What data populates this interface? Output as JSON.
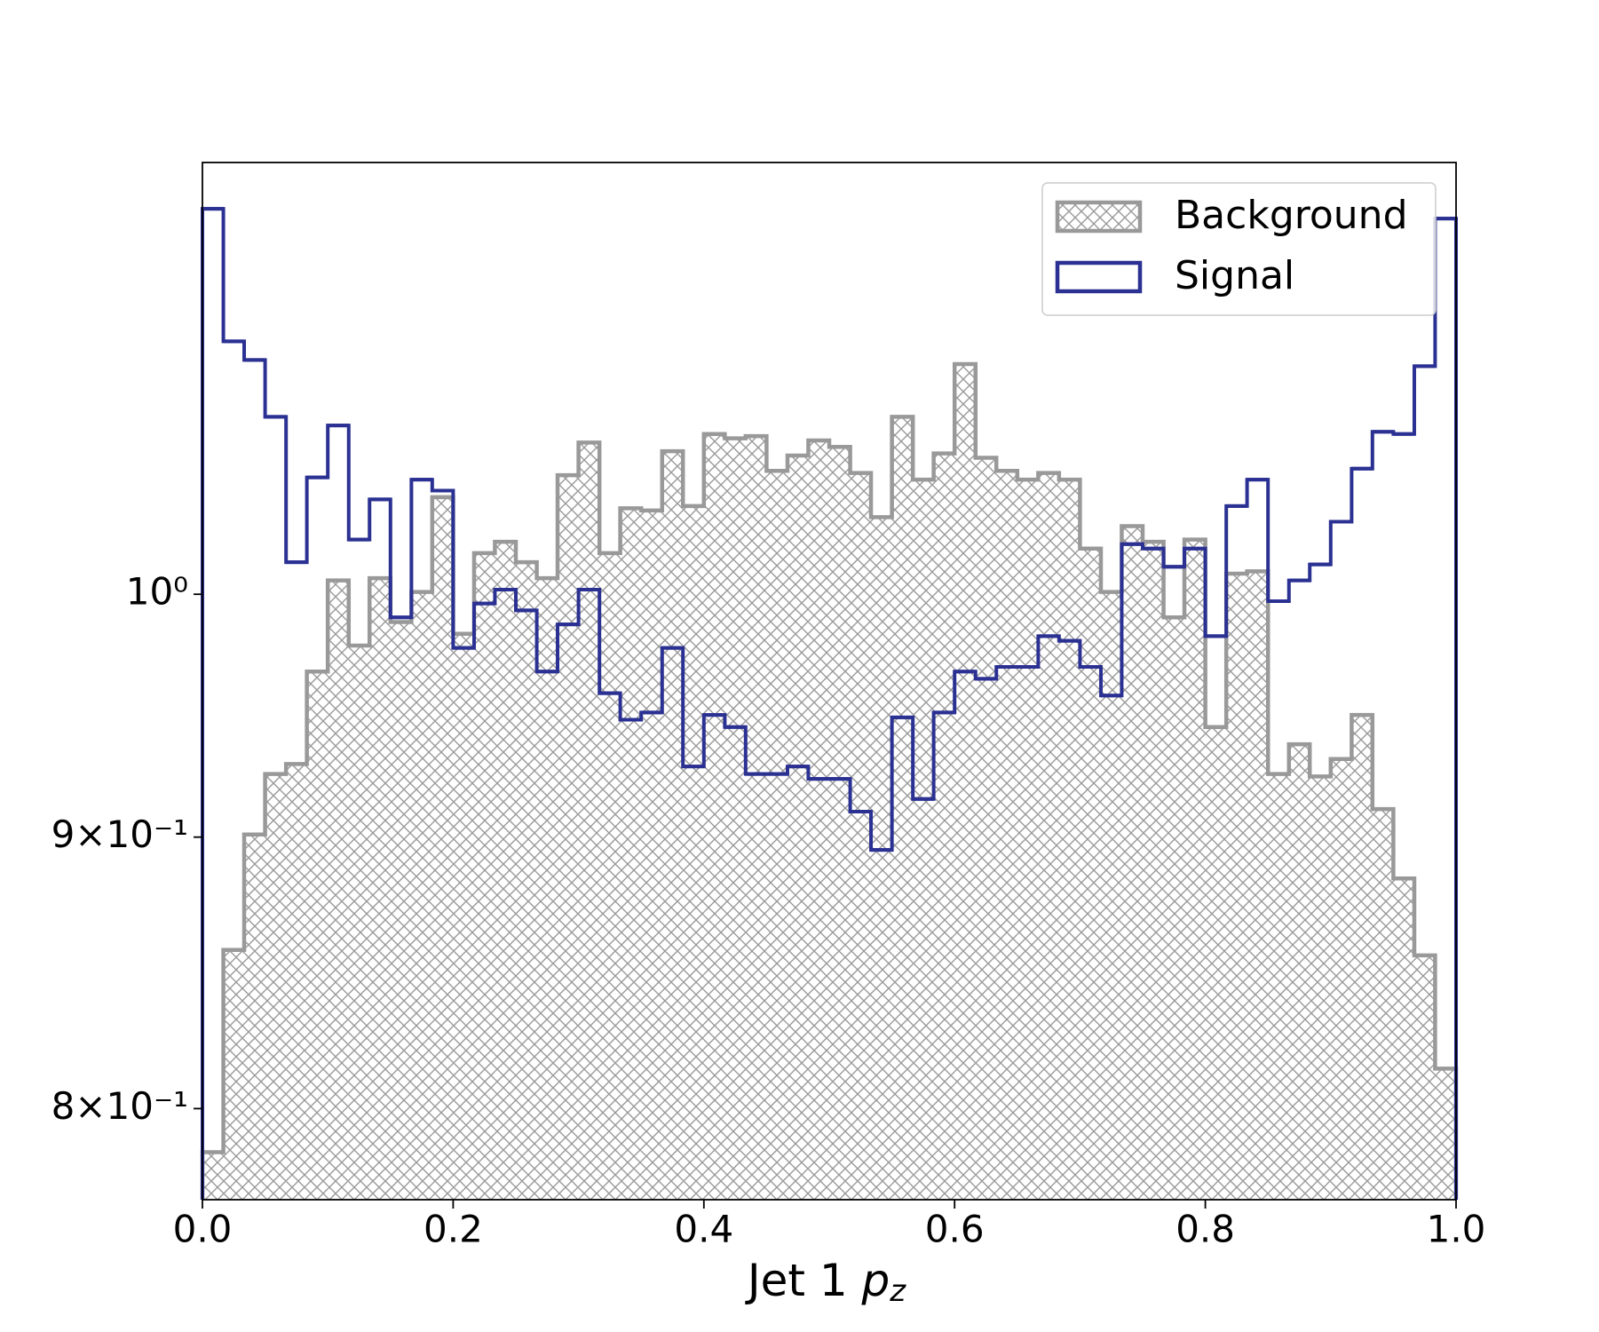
{
  "chart_data": {
    "type": "histogram",
    "xlabel": "Jet 1 pz",
    "bins": [
      0,
      0.0167,
      0.0333,
      0.05,
      0.0667,
      0.0833,
      0.1,
      0.1167,
      0.1333,
      0.15,
      0.1667,
      0.1833,
      0.2,
      0.2167,
      0.2333,
      0.25,
      0.2667,
      0.2833,
      0.3,
      0.3167,
      0.3333,
      0.35,
      0.3667,
      0.3833,
      0.4,
      0.4167,
      0.4333,
      0.45,
      0.4667,
      0.4833,
      0.5,
      0.5167,
      0.5333,
      0.55,
      0.5667,
      0.5833,
      0.6,
      0.6167,
      0.6333,
      0.65,
      0.6667,
      0.6833,
      0.7,
      0.7167,
      0.7333,
      0.75,
      0.7667,
      0.7833,
      0.8,
      0.8167,
      0.8333,
      0.85,
      0.8667,
      0.8833,
      0.9,
      0.9167,
      0.9333,
      0.95,
      0.9667,
      0.9833,
      1
    ],
    "series": [
      {
        "name": "Background",
        "color": "#999999",
        "hatch": true,
        "values": [
          0.785,
          0.857,
          0.901,
          0.925,
          0.929,
          0.967,
          1.006,
          0.978,
          1.007,
          0.988,
          1.001,
          1.043,
          0.983,
          1.018,
          1.023,
          1.014,
          1.007,
          1.053,
          1.068,
          1.018,
          1.038,
          1.037,
          1.064,
          1.039,
          1.072,
          1.07,
          1.071,
          1.055,
          1.062,
          1.069,
          1.066,
          1.054,
          1.034,
          1.08,
          1.051,
          1.063,
          1.105,
          1.061,
          1.055,
          1.051,
          1.054,
          1.051,
          1.02,
          1.001,
          1.03,
          1.023,
          0.99,
          1.024,
          0.944,
          1.009,
          1.01,
          0.925,
          0.937,
          0.924,
          0.931,
          0.949,
          0.911,
          0.884,
          0.855,
          0.814
        ]
      },
      {
        "name": "Signal",
        "color": "#2b3192",
        "hatch": false,
        "values": [
          1.182,
          1.116,
          1.107,
          1.08,
          1.014,
          1.052,
          1.076,
          1.024,
          1.042,
          0.99,
          1.051,
          1.046,
          0.977,
          0.996,
          1.002,
          0.993,
          0.967,
          0.987,
          1.002,
          0.958,
          0.947,
          0.95,
          0.977,
          0.928,
          0.949,
          0.944,
          0.925,
          0.925,
          0.928,
          0.923,
          0.923,
          0.91,
          0.895,
          0.948,
          0.915,
          0.95,
          0.967,
          0.964,
          0.969,
          0.969,
          0.982,
          0.98,
          0.969,
          0.957,
          1.022,
          1.02,
          1.012,
          1.02,
          0.982,
          1.039,
          1.051,
          0.997,
          1.006,
          1.013,
          1.032,
          1.056,
          1.073,
          1.072,
          1.104,
          1.177
        ]
      }
    ],
    "xlim": [
      0,
      1
    ],
    "xticks": [
      {
        "value": 0,
        "label": "0.0"
      },
      0.2,
      0.4,
      0.6,
      0.8,
      {
        "value": 1,
        "label": "1.0"
      }
    ],
    "ylim": [
      0.769,
      1.206
    ],
    "ylog": true,
    "yticks": [
      {
        "value": 0.8,
        "label": "8×10⁻¹"
      },
      {
        "value": 0.9,
        "label": "9×10⁻¹"
      },
      {
        "value": 1,
        "label": "10⁰"
      }
    ],
    "legend": "upper right"
  }
}
